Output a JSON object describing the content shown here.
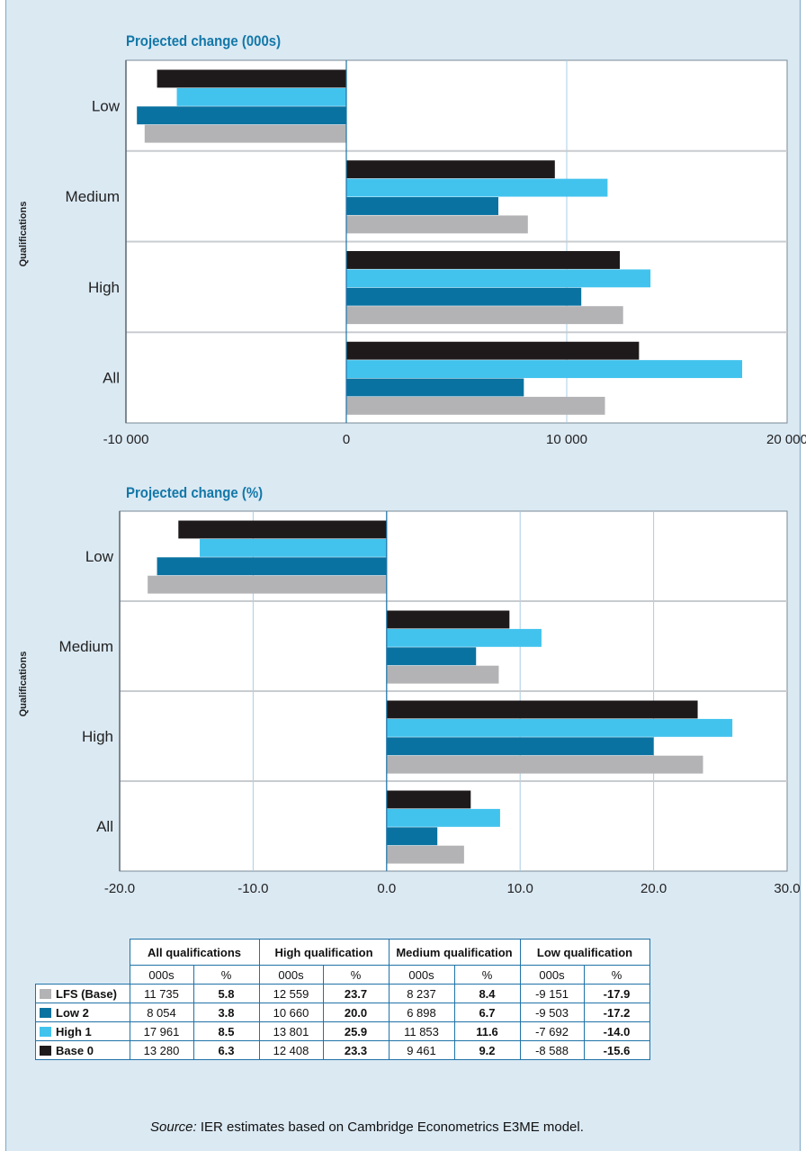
{
  "colors": {
    "LFS (Base)": "#b3b3b5",
    "Low 2": "#0a72a0",
    "High 1": "#42c3ee",
    "Base 0": "#1e1a1b"
  },
  "chart_data": [
    {
      "type": "bar",
      "orientation": "horizontal",
      "title": "Projected change (000s)",
      "ylabel": "Qualifications",
      "categories": [
        "Low",
        "Medium",
        "High",
        "All"
      ],
      "xlim": [
        -10000,
        20000
      ],
      "xticks": [
        -10000,
        0,
        10000,
        20000
      ],
      "xtick_labels": [
        "-10 000",
        "0",
        "10 000",
        "20 000"
      ],
      "grid": true,
      "series": [
        {
          "name": "Base 0",
          "values": [
            -8588,
            9461,
            12408,
            13280
          ]
        },
        {
          "name": "High 1",
          "values": [
            -7692,
            11853,
            13801,
            17961
          ]
        },
        {
          "name": "Low 2",
          "values": [
            -9503,
            6898,
            10660,
            8054
          ]
        },
        {
          "name": "LFS (Base)",
          "values": [
            -9151,
            8237,
            12559,
            11735
          ]
        }
      ]
    },
    {
      "type": "bar",
      "orientation": "horizontal",
      "title": "Projected change (%)",
      "ylabel": "Qualifications",
      "categories": [
        "Low",
        "Medium",
        "High",
        "All"
      ],
      "xlim": [
        -20,
        30
      ],
      "xticks": [
        -20,
        -10,
        0,
        10,
        20,
        30
      ],
      "xtick_labels": [
        "-20.0",
        "-10.0",
        "0.0",
        "10.0",
        "20.0",
        "30.0"
      ],
      "grid": true,
      "series": [
        {
          "name": "Base 0",
          "values": [
            -15.6,
            9.2,
            23.3,
            6.3
          ]
        },
        {
          "name": "High 1",
          "values": [
            -14.0,
            11.6,
            25.9,
            8.5
          ]
        },
        {
          "name": "Low 2",
          "values": [
            -17.2,
            6.7,
            20.0,
            3.8
          ]
        },
        {
          "name": "LFS (Base)",
          "values": [
            -17.9,
            8.4,
            23.7,
            5.8
          ]
        }
      ]
    }
  ],
  "table": {
    "groups": [
      "All qualifications",
      "High qualification",
      "Medium qualification",
      "Low qualification"
    ],
    "units": [
      "000s",
      "%"
    ],
    "rows": [
      {
        "name": "LFS (Base)",
        "cells": [
          "11 735",
          "5.8",
          "12 559",
          "23.7",
          "8 237",
          "8.4",
          "-9 151",
          "-17.9"
        ]
      },
      {
        "name": "Low 2",
        "cells": [
          "8 054",
          "3.8",
          "10 660",
          "20.0",
          "6 898",
          "6.7",
          "-9 503",
          "-17.2"
        ]
      },
      {
        "name": "High 1",
        "cells": [
          "17 961",
          "8.5",
          "13 801",
          "25.9",
          "11 853",
          "11.6",
          "-7 692",
          "-14.0"
        ]
      },
      {
        "name": "Base 0",
        "cells": [
          "13 280",
          "6.3",
          "12 408",
          "23.3",
          "9 461",
          "9.2",
          "-8 588",
          "-15.6"
        ]
      }
    ]
  },
  "source": {
    "label": "Source:",
    "text": " IER estimates based on Cambridge Econometrics E3ME model."
  }
}
